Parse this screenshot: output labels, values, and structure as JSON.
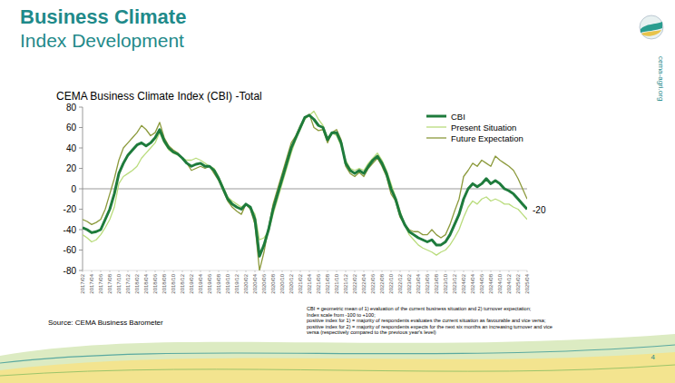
{
  "page": {
    "header_title": "Business Climate",
    "header_subtitle": "Index Development",
    "source": "Source: CEMA Business Barometer",
    "footnote": [
      "CBI = geometric mean of 1) evaluation of the current business situation and 2) turnover expectation;",
      "Index scale from -100 to +100;",
      "positive index for 1) = majority of respondents evaluates the current situation as favourable and vice versa;",
      "positive index for 2) = majority of respondents expects for the next six months an increasing turnover and vice",
      "versa (respectively compared to the previous year's level)"
    ],
    "page_number": "4",
    "website": "cema-agri.org"
  },
  "chart_data": {
    "type": "line",
    "title": "CEMA Business Climate Index (CBI) -Total",
    "categories": [
      "2017/02",
      null,
      "2017/04",
      null,
      "2017/06",
      null,
      "2017/08",
      null,
      "2017/10",
      null,
      "2017/12",
      null,
      "2018/02",
      null,
      "2018/04",
      null,
      "2018/06",
      null,
      "2018/08",
      null,
      "2018/10",
      null,
      "2018/12",
      null,
      "2019/02",
      null,
      "2019/04",
      null,
      "2019/06",
      null,
      "2019/08",
      null,
      "2019/10",
      null,
      "2019/12",
      null,
      "2020/02",
      null,
      "2020/04",
      null,
      "2020/06",
      null,
      "2020/08",
      null,
      "2020/10",
      null,
      "2020/12",
      null,
      "2021/02",
      null,
      "2021/04",
      null,
      "2021/06",
      null,
      "2021/08",
      null,
      "2021/10",
      null,
      "2021/12",
      null,
      "2022/02",
      null,
      "2022/04",
      null,
      "2022/06",
      null,
      "2022/08",
      null,
      "2022/10",
      null,
      "2022/12",
      null,
      "2023/02",
      null,
      "2023/04",
      null,
      "2023/06",
      null,
      "2023/08",
      null,
      "2023/10",
      null,
      "2023/12",
      null,
      "2024/02",
      null,
      "2024/04",
      null,
      "2024/06",
      null,
      "2024/08",
      null,
      "2024/10",
      null,
      "2024/12",
      null,
      "2025/02",
      null,
      "2025/04"
    ],
    "series": [
      {
        "name": "CBI",
        "color": "#1e7b3c",
        "values": [
          -38,
          -40,
          -43,
          -42,
          -40,
          -30,
          -20,
          -5,
          15,
          25,
          33,
          38,
          43,
          45,
          42,
          45,
          50,
          58,
          47,
          40,
          36,
          34,
          30,
          25,
          22,
          24,
          25,
          22,
          22,
          18,
          10,
          0,
          -10,
          -15,
          -18,
          -20,
          -15,
          -18,
          -30,
          -66,
          -55,
          -40,
          -20,
          -5,
          10,
          25,
          40,
          50,
          60,
          70,
          72,
          68,
          62,
          60,
          48,
          55,
          55,
          45,
          25,
          18,
          15,
          18,
          15,
          22,
          28,
          32,
          25,
          15,
          0,
          -10,
          -25,
          -35,
          -42,
          -45,
          -48,
          -50,
          -52,
          -50,
          -55,
          -55,
          -52,
          -45,
          -35,
          -25,
          -10,
          0,
          5,
          2,
          5,
          10,
          5,
          8,
          5,
          0,
          -2,
          -5,
          -10,
          -15,
          -20
        ]
      },
      {
        "name": "Present Situation",
        "color": "#b9dc7c",
        "values": [
          -45,
          -48,
          -52,
          -50,
          -45,
          -38,
          -30,
          -18,
          5,
          12,
          15,
          18,
          22,
          30,
          35,
          40,
          45,
          55,
          45,
          38,
          35,
          33,
          30,
          28,
          28,
          30,
          28,
          25,
          22,
          20,
          12,
          2,
          -8,
          -12,
          -15,
          -18,
          -15,
          -18,
          -25,
          -50,
          -48,
          -42,
          -25,
          -10,
          5,
          20,
          35,
          48,
          58,
          68,
          72,
          76,
          68,
          62,
          50,
          55,
          52,
          42,
          28,
          20,
          18,
          20,
          18,
          25,
          30,
          35,
          28,
          18,
          5,
          -8,
          -22,
          -35,
          -45,
          -50,
          -55,
          -58,
          -60,
          -62,
          -65,
          -62,
          -60,
          -55,
          -48,
          -40,
          -28,
          -18,
          -12,
          -15,
          -10,
          -8,
          -12,
          -10,
          -12,
          -15,
          -15,
          -18,
          -20,
          -25,
          -30
        ]
      },
      {
        "name": "Future Expectation",
        "color": "#8c9a3c",
        "values": [
          -30,
          -32,
          -35,
          -33,
          -30,
          -20,
          -5,
          10,
          28,
          40,
          45,
          50,
          55,
          62,
          58,
          52,
          55,
          65,
          50,
          42,
          38,
          35,
          30,
          25,
          18,
          20,
          22,
          20,
          22,
          15,
          8,
          -2,
          -12,
          -18,
          -22,
          -25,
          -15,
          -20,
          -35,
          -80,
          -62,
          -38,
          -15,
          0,
          15,
          30,
          45,
          52,
          62,
          70,
          73,
          60,
          57,
          58,
          45,
          55,
          58,
          48,
          22,
          15,
          12,
          16,
          12,
          20,
          25,
          30,
          22,
          12,
          -5,
          -12,
          -28,
          -35,
          -40,
          -42,
          -42,
          -45,
          -45,
          -40,
          -45,
          -48,
          -45,
          -35,
          -22,
          -10,
          12,
          18,
          25,
          22,
          28,
          25,
          22,
          32,
          28,
          25,
          22,
          18,
          10,
          0,
          -10
        ]
      }
    ],
    "ylim": [
      -80,
      80
    ],
    "yticks": [
      -80,
      -60,
      -40,
      -20,
      0,
      20,
      40,
      60,
      80
    ],
    "grid": false,
    "legend": "upper right",
    "annotations": [
      "-20"
    ]
  }
}
